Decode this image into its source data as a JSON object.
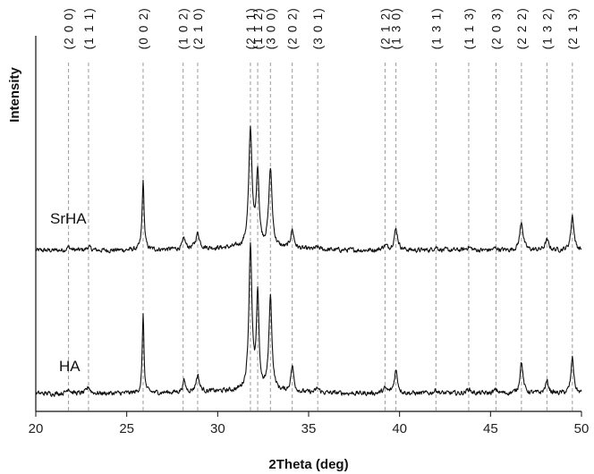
{
  "chart_data": {
    "type": "line",
    "title": "",
    "xlabel": "2Theta (deg)",
    "ylabel": "Intensity",
    "xlim": [
      20,
      50
    ],
    "xticks": [
      20,
      25,
      30,
      35,
      40,
      45,
      50
    ],
    "y_tick_labels_shown": false,
    "grid": false,
    "legend": "none (series labeled inline)",
    "reference_lines": {
      "style": "dashed-vertical",
      "color": "#9a9a9a",
      "peaks": [
        {
          "label": "(2 0 0)",
          "x": 21.8
        },
        {
          "label": "(1 1 1)",
          "x": 22.9
        },
        {
          "label": "(0 0 2)",
          "x": 25.9
        },
        {
          "label": "(1 0 2)",
          "x": 28.1
        },
        {
          "label": "(2 1 0)",
          "x": 28.9
        },
        {
          "label": "(2 1 1)",
          "x": 31.8
        },
        {
          "label": "(1 1 2)",
          "x": 32.2
        },
        {
          "label": "(3 0 0)",
          "x": 32.9
        },
        {
          "label": "(2 0 2)",
          "x": 34.1
        },
        {
          "label": "(3 0 1)",
          "x": 35.5
        },
        {
          "label": "(2 1 2)",
          "x": 39.2
        },
        {
          "label": "(1 3 0)",
          "x": 39.8
        },
        {
          "label": "(1 3 1)",
          "x": 42.0
        },
        {
          "label": "(1 1 3)",
          "x": 43.8
        },
        {
          "label": "(2 0 3)",
          "x": 45.3
        },
        {
          "label": "(2 2 2)",
          "x": 46.7
        },
        {
          "label": "(1 3 2)",
          "x": 48.1
        },
        {
          "label": "(2 1 3)",
          "x": 49.5
        }
      ]
    },
    "series": [
      {
        "name": "SrHA",
        "color": "#111111",
        "baseline": 1.3,
        "peaks": [
          [
            21.8,
            0.03,
            0.25
          ],
          [
            22.9,
            0.03,
            0.25
          ],
          [
            25.9,
            0.63,
            0.13
          ],
          [
            28.15,
            0.09,
            0.2
          ],
          [
            28.9,
            0.14,
            0.25
          ],
          [
            31.8,
            1.07,
            0.22
          ],
          [
            32.2,
            0.68,
            0.18
          ],
          [
            32.9,
            0.72,
            0.22
          ],
          [
            34.1,
            0.17,
            0.22
          ],
          [
            35.5,
            0.02,
            0.25
          ],
          [
            39.2,
            0.04,
            0.3
          ],
          [
            39.8,
            0.19,
            0.25
          ],
          [
            42.0,
            0.03,
            0.3
          ],
          [
            43.8,
            0.03,
            0.3
          ],
          [
            45.3,
            0.02,
            0.3
          ],
          [
            46.7,
            0.26,
            0.22
          ],
          [
            48.1,
            0.09,
            0.25
          ],
          [
            49.5,
            0.32,
            0.2
          ]
        ]
      },
      {
        "name": "HA",
        "color": "#111111",
        "baseline": 0.0,
        "peaks": [
          [
            21.8,
            0.05,
            0.22
          ],
          [
            22.9,
            0.06,
            0.22
          ],
          [
            25.9,
            0.73,
            0.11
          ],
          [
            28.15,
            0.1,
            0.18
          ],
          [
            28.9,
            0.15,
            0.22
          ],
          [
            31.8,
            1.33,
            0.2
          ],
          [
            32.2,
            0.86,
            0.16
          ],
          [
            32.9,
            0.86,
            0.2
          ],
          [
            34.1,
            0.23,
            0.2
          ],
          [
            35.5,
            0.04,
            0.22
          ],
          [
            39.2,
            0.04,
            0.28
          ],
          [
            39.8,
            0.21,
            0.22
          ],
          [
            42.0,
            0.03,
            0.28
          ],
          [
            43.8,
            0.04,
            0.28
          ],
          [
            45.3,
            0.03,
            0.28
          ],
          [
            46.7,
            0.29,
            0.2
          ],
          [
            48.1,
            0.11,
            0.22
          ],
          [
            49.5,
            0.33,
            0.18
          ]
        ]
      }
    ]
  }
}
